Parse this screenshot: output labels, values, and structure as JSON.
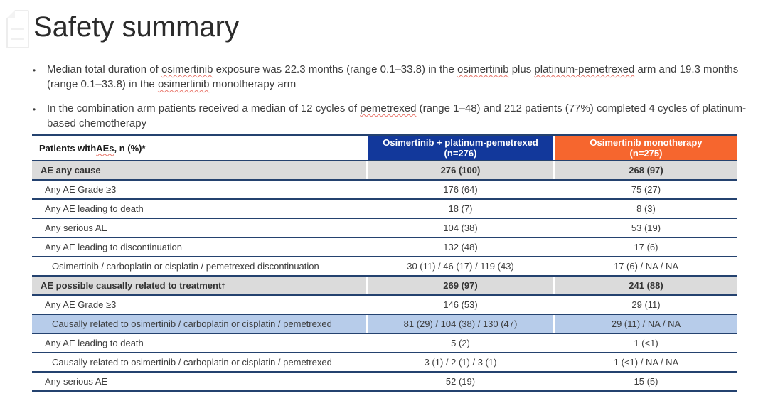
{
  "slide_title": "Safety summary",
  "bullet_char": "•",
  "colors": {
    "arm1_header": "#12389B",
    "arm2_header": "#F6662E",
    "section_row": "#DBDBDB",
    "highlight_row": "#B7CCEA",
    "row_line": "#24426F"
  },
  "bullets": [
    {
      "segments": [
        {
          "t": "Median total duration of "
        },
        {
          "t": "osimertinib",
          "sq": true
        },
        {
          "t": " exposure was 22.3 months (range 0.1–33.8) in the "
        },
        {
          "t": "osimertinib",
          "sq": true
        },
        {
          "t": " plus "
        },
        {
          "t": "platinum-pemetrexed",
          "sq": true
        },
        {
          "t": " arm and 19.3 months (range 0.1–33.8) in the "
        },
        {
          "t": "osimertinib",
          "sq": true
        },
        {
          "t": " monotherapy arm"
        }
      ]
    },
    {
      "segments": [
        {
          "t": "In the combination arm patients received a median of 12 cycles of "
        },
        {
          "t": "pemetrexed",
          "sq": true
        },
        {
          "t": " (range 1–48) and 212 patients (77%) completed 4 cycles of platinum-based chemotherapy"
        }
      ]
    }
  ],
  "table": {
    "header": {
      "col1_segments": [
        {
          "t": "Patients with "
        },
        {
          "t": "AEs",
          "sq": true
        },
        {
          "t": ", n (%)*"
        }
      ],
      "col2": [
        "Osimertinib + platinum-pemetrexed",
        "(n=276)"
      ],
      "col3": [
        "Osimertinib monotherapy",
        "(n=275)"
      ]
    },
    "rows": [
      {
        "label": "AE any cause",
        "v1": "276 (100)",
        "v2": "268 (97)",
        "style": "section",
        "indent": 0
      },
      {
        "label": "Any AE Grade ≥3",
        "v1": "176 (64)",
        "v2": "75 (27)",
        "style": "normal",
        "indent": 1
      },
      {
        "label": "Any AE leading to death",
        "v1": "18 (7)",
        "v2": "8 (3)",
        "style": "normal",
        "indent": 1
      },
      {
        "label": "Any serious AE",
        "v1": "104 (38)",
        "v2": "53 (19)",
        "style": "normal",
        "indent": 1
      },
      {
        "label": "Any AE leading to discontinuation",
        "v1": "132 (48)",
        "v2": "17 (6)",
        "style": "normal",
        "indent": 1
      },
      {
        "label": "Osimertinib / carboplatin or cisplatin / pemetrexed discontinuation",
        "v1": "30 (11) / 46 (17) / 119 (43)",
        "v2": "17 (6) / NA / NA",
        "style": "normal",
        "indent": 2
      },
      {
        "label": "AE possible causally related to treatment",
        "sup": "†",
        "v1": "269 (97)",
        "v2": "241 (88)",
        "style": "section",
        "indent": 0
      },
      {
        "label": "Any AE Grade ≥3",
        "v1": "146 (53)",
        "v2": "29 (11)",
        "style": "normal",
        "indent": 1
      },
      {
        "label": "Causally related to osimertinib / carboplatin or cisplatin / pemetrexed",
        "v1": "81 (29) / 104 (38) / 130 (47)",
        "v2": "29 (11) / NA / NA",
        "style": "highlight",
        "indent": 2
      },
      {
        "label": "Any AE leading to death",
        "v1": "5 (2)",
        "v2": "1 (<1)",
        "style": "normal",
        "indent": 1
      },
      {
        "label": "Causally related to osimertinib / carboplatin or cisplatin / pemetrexed",
        "v1": "3 (1) / 2 (1) / 3 (1)",
        "v2": "1 (<1) / NA / NA",
        "style": "normal",
        "indent": 2
      },
      {
        "label": "Any serious AE",
        "v1": "52 (19)",
        "v2": "15 (5)",
        "style": "normal",
        "indent": 1
      }
    ]
  }
}
